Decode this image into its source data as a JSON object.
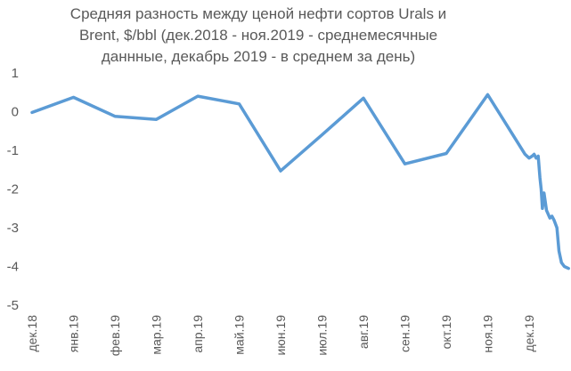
{
  "chart_data": {
    "type": "line",
    "title_lines": [
      "Средняя разность между ценой нефти сортов Urals и",
      "Brent, $/bbl (дек.2018 - ноя.2019 - среднемесячные",
      "даннные, декабрь 2019 - в среднем за день)"
    ],
    "xlabel": "",
    "ylabel": "",
    "ylim": [
      -5,
      1
    ],
    "yticks": [
      1,
      0,
      -1,
      -2,
      -3,
      -4,
      -5
    ],
    "categories": [
      "дек.18",
      "янв.19",
      "фев.19",
      "мар.19",
      "апр.19",
      "май.19",
      "июн.19",
      "июл.19",
      "авг.19",
      "сен.19",
      "окт.19",
      "ноя.19",
      "дек.19"
    ],
    "grid": false,
    "legend": "none",
    "line_color": "#5B9BD5",
    "series": [
      {
        "x": [
          0,
          1,
          2,
          3,
          4,
          5,
          6,
          7,
          8,
          9,
          10,
          11,
          11.9,
          12.0,
          12.07,
          12.12,
          12.17,
          12.22,
          12.26,
          12.29,
          12.32,
          12.36,
          12.42,
          12.5,
          12.55,
          12.6,
          12.67,
          12.72,
          12.78,
          12.85,
          12.95
        ],
        "y": [
          -0.02,
          0.37,
          -0.12,
          -0.2,
          0.4,
          0.2,
          -1.53,
          -0.6,
          0.35,
          -1.35,
          -1.08,
          0.44,
          -1.1,
          -1.2,
          -1.15,
          -1.1,
          -1.2,
          -1.15,
          -1.7,
          -2.0,
          -2.5,
          -2.1,
          -2.55,
          -2.75,
          -2.7,
          -2.8,
          -3.0,
          -3.6,
          -3.9,
          -4.0,
          -4.05
        ]
      }
    ]
  }
}
